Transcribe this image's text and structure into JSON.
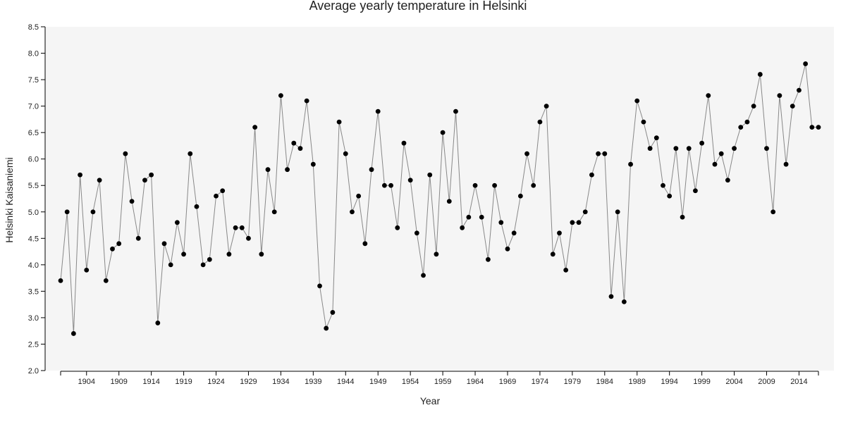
{
  "chart_data": {
    "type": "line",
    "title": "Average yearly temperature in Helsinki",
    "xlabel": "Year",
    "ylabel": "Helsinki Kaisaniemi",
    "xlim": [
      1900,
      2017
    ],
    "ylim": [
      2.0,
      8.5
    ],
    "grid": false,
    "plot_background": "#f5f5f5",
    "line_color": "#888888",
    "point_color": "#000000",
    "x_ticks": [
      1904,
      1909,
      1914,
      1919,
      1924,
      1929,
      1934,
      1939,
      1944,
      1949,
      1954,
      1959,
      1964,
      1969,
      1974,
      1979,
      1984,
      1989,
      1994,
      1999,
      2004,
      2009,
      2014
    ],
    "y_ticks": [
      "2.0",
      "2.5",
      "3.0",
      "3.5",
      "4.0",
      "4.5",
      "5.0",
      "5.5",
      "6.0",
      "6.5",
      "7.0",
      "7.5",
      "8.0",
      "8.5"
    ],
    "series": [
      {
        "x": [
          1900,
          1901,
          1902,
          1903,
          1904,
          1905,
          1906,
          1907,
          1908,
          1909,
          1910,
          1911,
          1912,
          1913,
          1914,
          1915,
          1916,
          1917,
          1918,
          1919,
          1920,
          1921,
          1922,
          1923,
          1924,
          1925,
          1926,
          1927,
          1928,
          1929,
          1930,
          1931,
          1932,
          1933,
          1934,
          1935,
          1936,
          1937,
          1938,
          1939,
          1940,
          1941,
          1942,
          1943,
          1944,
          1945,
          1946,
          1947,
          1948,
          1949,
          1950,
          1951,
          1952,
          1953,
          1954,
          1955,
          1956,
          1957,
          1958,
          1959,
          1960,
          1961,
          1962,
          1963,
          1964,
          1965,
          1966,
          1967,
          1968,
          1969,
          1970,
          1971,
          1972,
          1973,
          1974,
          1975,
          1976,
          1977,
          1978,
          1979,
          1980,
          1981,
          1982,
          1983,
          1984,
          1985,
          1986,
          1987,
          1988,
          1989,
          1990,
          1991,
          1992,
          1993,
          1994,
          1995,
          1996,
          1997,
          1998,
          1999,
          2000,
          2001,
          2002,
          2003,
          2004,
          2005,
          2006,
          2007,
          2008,
          2009,
          2010,
          2011,
          2012,
          2013,
          2014,
          2015,
          2016,
          2017
        ],
        "values": [
          3.7,
          5.0,
          2.7,
          5.7,
          3.9,
          5.0,
          5.6,
          3.7,
          4.3,
          4.4,
          6.1,
          5.2,
          4.5,
          5.6,
          5.7,
          2.9,
          4.4,
          4.0,
          4.8,
          4.2,
          6.1,
          5.1,
          4.0,
          4.1,
          5.3,
          5.4,
          4.2,
          4.7,
          4.7,
          4.5,
          6.6,
          4.2,
          5.8,
          5.0,
          7.2,
          5.8,
          6.3,
          6.2,
          7.1,
          5.9,
          3.6,
          2.8,
          3.1,
          6.7,
          6.1,
          5.0,
          5.3,
          4.4,
          5.8,
          6.9,
          5.5,
          5.5,
          4.7,
          6.3,
          5.6,
          4.6,
          3.8,
          5.7,
          4.2,
          6.5,
          5.2,
          6.9,
          4.7,
          4.9,
          5.5,
          4.9,
          4.1,
          5.5,
          4.8,
          4.3,
          4.6,
          5.3,
          6.1,
          5.5,
          6.7,
          7.0,
          4.2,
          4.6,
          3.9,
          4.8,
          4.8,
          5.0,
          5.7,
          6.1,
          6.1,
          3.4,
          5.0,
          3.3,
          5.9,
          7.1,
          6.7,
          6.2,
          6.4,
          5.5,
          5.3,
          6.2,
          4.9,
          6.2,
          5.4,
          6.3,
          7.2,
          5.9,
          6.1,
          5.6,
          6.2,
          6.6,
          6.7,
          7.0,
          7.6,
          6.2,
          5.0,
          7.2,
          5.9,
          7.0,
          7.3,
          7.8,
          6.6,
          6.6
        ]
      }
    ]
  }
}
